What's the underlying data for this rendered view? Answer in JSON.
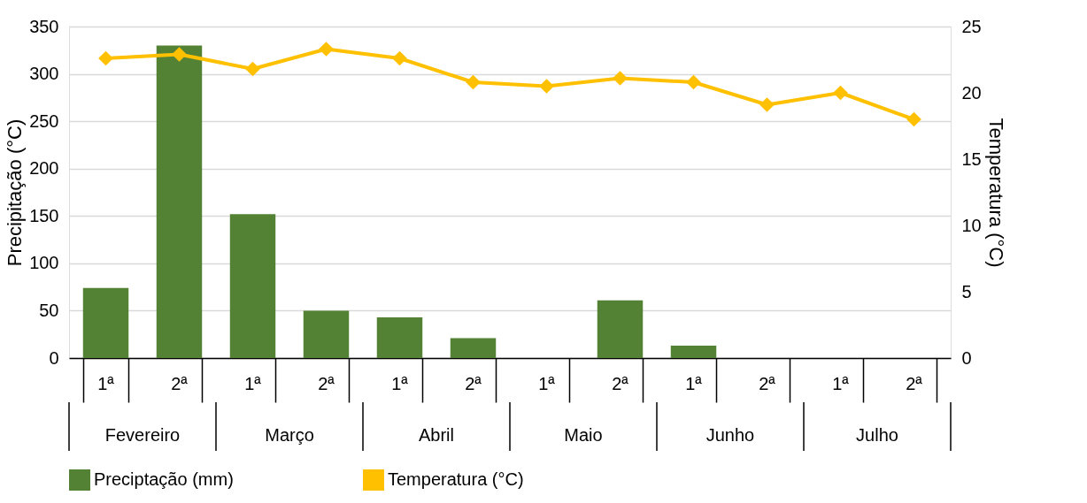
{
  "chart_data": {
    "type": "bar",
    "categories": [
      "1ª",
      "2ª",
      "1ª",
      "2ª",
      "1ª",
      "2ª",
      "1ª",
      "2ª",
      "1ª",
      "2ª",
      "1ª",
      "2ª"
    ],
    "annotations": [
      "Fevereiro",
      "Março",
      "Abril",
      "Maio",
      "Junho",
      "Julho"
    ],
    "ylabel": "Precipitação (°C)",
    "y2label": "Temperatura  (°C)",
    "ylim": [
      0,
      350
    ],
    "yticks": [
      0,
      50,
      100,
      150,
      200,
      250,
      300,
      350
    ],
    "y2lim": [
      0,
      25
    ],
    "y2ticks": [
      0,
      5,
      10,
      15,
      20,
      25
    ],
    "grid": "y",
    "legend": "bottom",
    "marker": "diamond",
    "series": [
      {
        "name": "Preciptação (mm)",
        "color": "#548235",
        "values": [
          74,
          330,
          152,
          50,
          43,
          21,
          0,
          61,
          13,
          0,
          0,
          0
        ]
      },
      {
        "name": "Temperatura (°C)",
        "color": "#ffc000",
        "type": "line",
        "axis": "y2",
        "values": [
          22.6,
          22.9,
          21.8,
          23.3,
          22.6,
          20.8,
          20.5,
          21.1,
          20.8,
          19.1,
          20.0,
          18.0
        ]
      }
    ]
  }
}
